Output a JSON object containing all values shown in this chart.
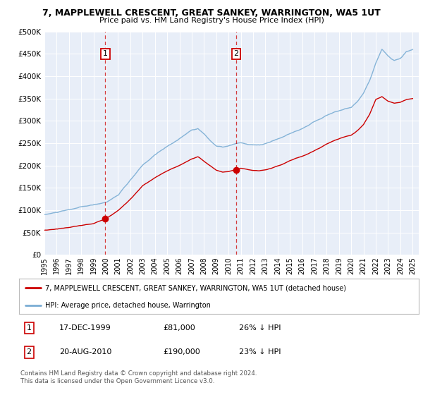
{
  "title": "7, MAPPLEWELL CRESCENT, GREAT SANKEY, WARRINGTON, WA5 1UT",
  "subtitle": "Price paid vs. HM Land Registry's House Price Index (HPI)",
  "ylabel_ticks": [
    "£0",
    "£50K",
    "£100K",
    "£150K",
    "£200K",
    "£250K",
    "£300K",
    "£350K",
    "£400K",
    "£450K",
    "£500K"
  ],
  "ytick_values": [
    0,
    50000,
    100000,
    150000,
    200000,
    250000,
    300000,
    350000,
    400000,
    450000,
    500000
  ],
  "ylim": [
    0,
    500000
  ],
  "xlim_start": 1995.0,
  "xlim_end": 2025.5,
  "xtick_years": [
    1995,
    1996,
    1997,
    1998,
    1999,
    2000,
    2001,
    2002,
    2003,
    2004,
    2005,
    2006,
    2007,
    2008,
    2009,
    2010,
    2011,
    2012,
    2013,
    2014,
    2015,
    2016,
    2017,
    2018,
    2019,
    2020,
    2021,
    2022,
    2023,
    2024,
    2025
  ],
  "sale1_x": 1999.96,
  "sale1_y": 81000,
  "sale1_label": "1",
  "sale1_date": "17-DEC-1999",
  "sale1_price": "£81,000",
  "sale1_hpi": "26% ↓ HPI",
  "sale2_x": 2010.63,
  "sale2_y": 190000,
  "sale2_label": "2",
  "sale2_date": "20-AUG-2010",
  "sale2_price": "£190,000",
  "sale2_hpi": "23% ↓ HPI",
  "hpi_color": "#7aadd4",
  "sale_color": "#cc0000",
  "plot_bg": "#e8eef8",
  "legend_label_sale": "7, MAPPLEWELL CRESCENT, GREAT SANKEY, WARRINGTON, WA5 1UT (detached house)",
  "legend_label_hpi": "HPI: Average price, detached house, Warrington",
  "footnote": "Contains HM Land Registry data © Crown copyright and database right 2024.\nThis data is licensed under the Open Government Licence v3.0."
}
